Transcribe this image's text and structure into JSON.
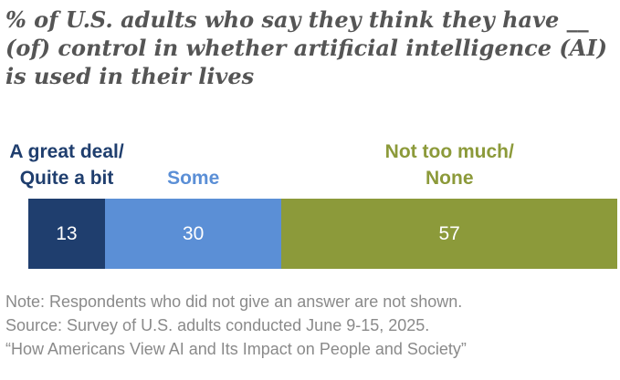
{
  "title": "% of U.S. adults who say they think they have __ (of) control in whether artificial intelligence (AI) is used in their lives",
  "colors": {
    "great_deal": "#1f3e6e",
    "some": "#5b8fd6",
    "not_too_much": "#8c9a3a",
    "text_title": "#555555",
    "text_note": "#8a8a8a"
  },
  "chart_data": {
    "type": "bar",
    "orientation": "horizontal-stacked",
    "series": [
      {
        "name": "A great deal/ Quite a bit",
        "name_lines": [
          "A great deal/",
          "Quite a bit"
        ],
        "value": 13,
        "color": "#1f3e6e"
      },
      {
        "name": "Some",
        "name_lines": [
          "Some"
        ],
        "value": 30,
        "color": "#5b8fd6"
      },
      {
        "name": "Not too much/ None",
        "name_lines": [
          "Not too much/",
          "None"
        ],
        "value": 57,
        "color": "#8c9a3a"
      }
    ],
    "total": 100
  },
  "notes": {
    "note": "Note: Respondents who did not give an answer are not shown.",
    "source": "Source: Survey of U.S. adults conducted June 9-15, 2025.",
    "report": "“How Americans View AI and Its Impact on People and Society”"
  }
}
